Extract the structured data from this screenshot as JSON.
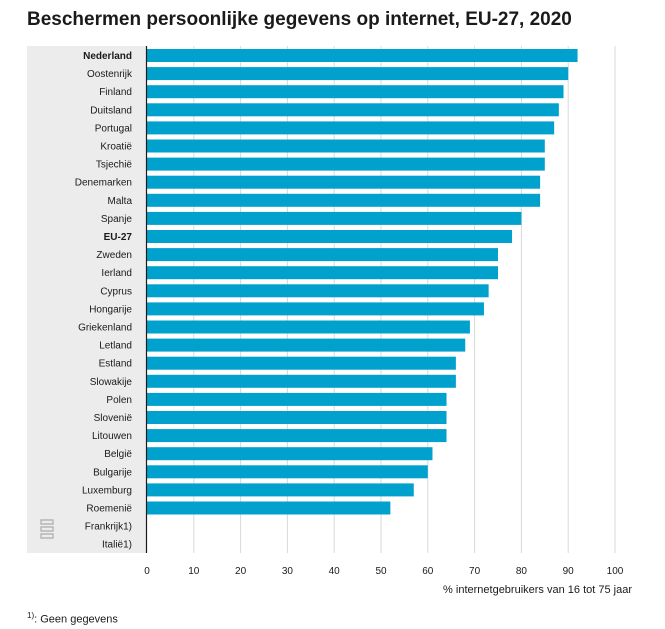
{
  "chart_data": {
    "type": "bar",
    "orientation": "horizontal",
    "title": "Beschermen persoonlijke gegevens op internet, EU-27, 2020",
    "xlabel": "% internetgebruikers van 16 tot 75 jaar",
    "ylabel": "",
    "xlim": [
      0,
      100
    ],
    "x_ticks": [
      "0",
      "10",
      "20",
      "30",
      "40",
      "50",
      "60",
      "70",
      "80",
      "90",
      "100"
    ],
    "grid": "vertical",
    "bar_color": "#00a1cd",
    "highlighted_categories": [
      "Nederland",
      "EU-27"
    ],
    "categories": [
      "Nederland",
      "Oostenrijk",
      "Finland",
      "Duitsland",
      "Portugal",
      "Kroatië",
      "Tsjechië",
      "Denemarken",
      "Malta",
      "Spanje",
      "EU-27",
      "Zweden",
      "Ierland",
      "Cyprus",
      "Hongarije",
      "Griekenland",
      "Letland",
      "Estland",
      "Slowakije",
      "Polen",
      "Slovenië",
      "Litouwen",
      "België",
      "Bulgarije",
      "Luxemburg",
      "Roemenië",
      "Frankrijk1)",
      "Italië1)"
    ],
    "values": [
      92,
      90,
      89,
      88,
      87,
      85,
      85,
      84,
      84,
      80,
      78,
      75,
      75,
      73,
      72,
      69,
      68,
      66,
      66,
      64,
      64,
      64,
      61,
      60,
      57,
      52,
      null,
      null
    ]
  },
  "footnote": {
    "marker": "1)",
    "text": ": Geen gegevens"
  }
}
